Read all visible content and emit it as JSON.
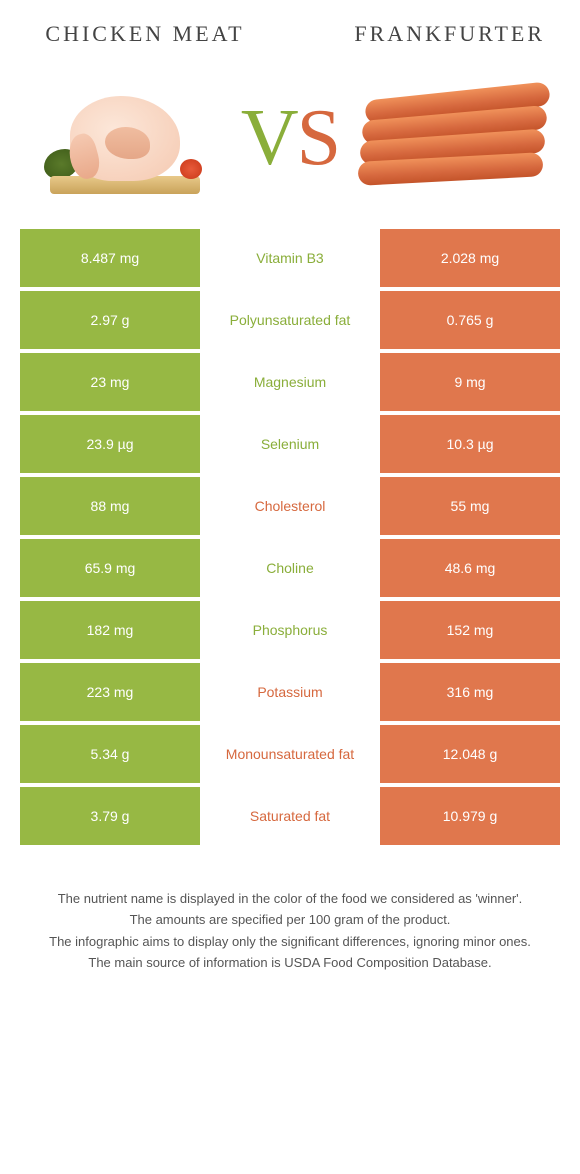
{
  "header": {
    "left_title": "Chicken meat",
    "right_title": "Frankfurter",
    "vs_v": "V",
    "vs_s": "S"
  },
  "colors": {
    "left_bg": "#97b844",
    "right_bg": "#e0774d",
    "left_text": "#8aae3a",
    "right_text": "#d6683e"
  },
  "rows": [
    {
      "left": "8.487 mg",
      "label": "Vitamin B3",
      "right": "2.028 mg",
      "winner": "left"
    },
    {
      "left": "2.97 g",
      "label": "Polyunsaturated fat",
      "right": "0.765 g",
      "winner": "left"
    },
    {
      "left": "23 mg",
      "label": "Magnesium",
      "right": "9 mg",
      "winner": "left"
    },
    {
      "left": "23.9 µg",
      "label": "Selenium",
      "right": "10.3 µg",
      "winner": "left"
    },
    {
      "left": "88 mg",
      "label": "Cholesterol",
      "right": "55 mg",
      "winner": "right"
    },
    {
      "left": "65.9 mg",
      "label": "Choline",
      "right": "48.6 mg",
      "winner": "left"
    },
    {
      "left": "182 mg",
      "label": "Phosphorus",
      "right": "152 mg",
      "winner": "left"
    },
    {
      "left": "223 mg",
      "label": "Potassium",
      "right": "316 mg",
      "winner": "right"
    },
    {
      "left": "5.34 g",
      "label": "Monounsaturated fat",
      "right": "12.048 g",
      "winner": "right"
    },
    {
      "left": "3.79 g",
      "label": "Saturated fat",
      "right": "10.979 g",
      "winner": "right"
    }
  ],
  "footer": {
    "l1": "The nutrient name is displayed in the color of the food we considered as 'winner'.",
    "l2": "The amounts are specified per 100 gram of the product.",
    "l3": "The infographic aims to display only the significant differences, ignoring minor ones.",
    "l4": "The main source of information is USDA Food Composition Database."
  }
}
